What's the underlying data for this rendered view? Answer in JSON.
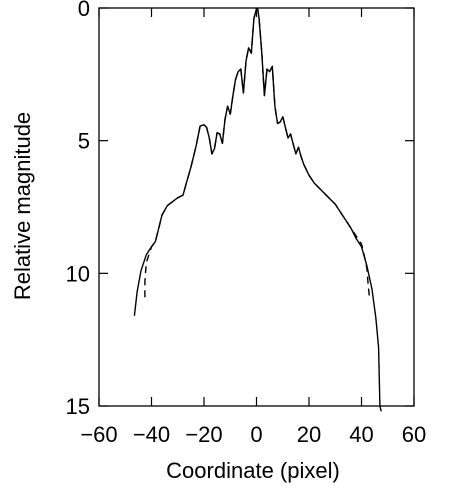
{
  "chart_data": {
    "type": "line",
    "title": "",
    "xlabel": "Coordinate (pixel)",
    "ylabel": "Relative magnitude",
    "xlim": [
      -60,
      60
    ],
    "ylim": [
      15,
      0
    ],
    "y_inverted": true,
    "grid": false,
    "legend": "none",
    "x_ticks": [
      -60,
      -40,
      -20,
      0,
      20,
      40,
      60
    ],
    "x_tick_labels": [
      "−60",
      "−40",
      "−20",
      "0",
      "20",
      "40",
      "60"
    ],
    "y_ticks": [
      0,
      5,
      10,
      15
    ],
    "y_tick_labels": [
      "0",
      "5",
      "10",
      "15"
    ],
    "series": [
      {
        "style": "solid",
        "color": "#000000",
        "x": [
          -46.5,
          -45.5,
          -44,
          -42,
          -40,
          -38.5,
          -37,
          -36,
          -34,
          -32,
          -30,
          -28,
          -27,
          -25,
          -23,
          -21.5,
          -20,
          -19,
          -18,
          -17,
          -16,
          -15,
          -14,
          -13,
          -12,
          -11,
          -10,
          -9,
          -8,
          -7,
          -6,
          -5,
          -4,
          -3,
          -2,
          -1,
          0,
          0.5,
          1,
          2,
          3,
          4,
          5,
          6,
          7,
          8,
          9,
          10,
          11,
          12,
          13,
          14,
          15,
          16,
          17,
          18,
          20,
          22,
          24,
          26,
          28,
          30,
          32,
          34,
          36,
          38,
          40,
          42,
          44,
          45.5,
          46.5,
          47,
          47.5
        ],
        "y": [
          11.6,
          10.7,
          9.9,
          9.3,
          9.0,
          8.8,
          8.2,
          7.8,
          7.45,
          7.3,
          7.15,
          7.05,
          6.7,
          6.0,
          5.2,
          4.45,
          4.4,
          4.5,
          4.9,
          5.5,
          5.3,
          4.7,
          4.75,
          5.1,
          4.2,
          3.7,
          4.0,
          3.3,
          2.7,
          2.4,
          2.3,
          3.2,
          2.0,
          1.5,
          1.7,
          0.4,
          0.02,
          0.05,
          0.4,
          1.7,
          3.3,
          2.3,
          2.4,
          2.2,
          3.7,
          4.35,
          4.3,
          4.1,
          4.5,
          4.9,
          4.75,
          5.15,
          5.5,
          5.25,
          5.6,
          5.9,
          6.3,
          6.6,
          6.8,
          7.0,
          7.2,
          7.4,
          7.7,
          8.0,
          8.3,
          8.7,
          9.0,
          9.7,
          10.6,
          11.7,
          12.8,
          15.0,
          15.2
        ]
      },
      {
        "style": "dashed",
        "color": "#000000",
        "x": [
          -42.5,
          -42.5,
          -42,
          -41,
          -40,
          -38.5,
          -37,
          -36,
          -34,
          -32,
          -30,
          -28,
          -27,
          -25,
          -23,
          -21.5,
          -20,
          -19,
          -18,
          -17,
          -16,
          -15,
          -14,
          -13,
          -12,
          -11,
          -10,
          -9,
          -8,
          -7,
          -6,
          -5,
          -4,
          -3,
          -2,
          -1,
          0,
          0.5,
          1,
          2,
          3,
          4,
          5,
          6,
          7,
          8,
          9,
          10,
          11,
          12,
          13,
          14,
          15,
          16,
          17,
          18,
          20,
          22,
          24,
          26,
          28,
          30,
          32,
          34,
          36,
          38,
          40,
          41,
          42,
          42.5,
          43
        ],
        "y": [
          10.9,
          10.3,
          9.6,
          9.3,
          9.0,
          8.8,
          8.2,
          7.8,
          7.45,
          7.3,
          7.15,
          7.05,
          6.7,
          6.0,
          5.2,
          4.45,
          4.4,
          4.5,
          4.9,
          5.5,
          5.3,
          4.7,
          4.75,
          5.1,
          4.2,
          3.7,
          4.0,
          3.3,
          2.7,
          2.4,
          2.3,
          3.2,
          2.0,
          1.5,
          1.7,
          0.4,
          0.02,
          0.05,
          0.4,
          1.7,
          3.3,
          2.3,
          2.4,
          2.2,
          3.7,
          4.35,
          4.3,
          4.1,
          4.5,
          4.9,
          4.75,
          5.15,
          5.5,
          5.25,
          5.6,
          5.9,
          6.3,
          6.6,
          6.8,
          7.0,
          7.2,
          7.4,
          7.7,
          8.0,
          8.3,
          8.6,
          8.9,
          9.3,
          9.8,
          10.4,
          10.9
        ]
      }
    ]
  }
}
